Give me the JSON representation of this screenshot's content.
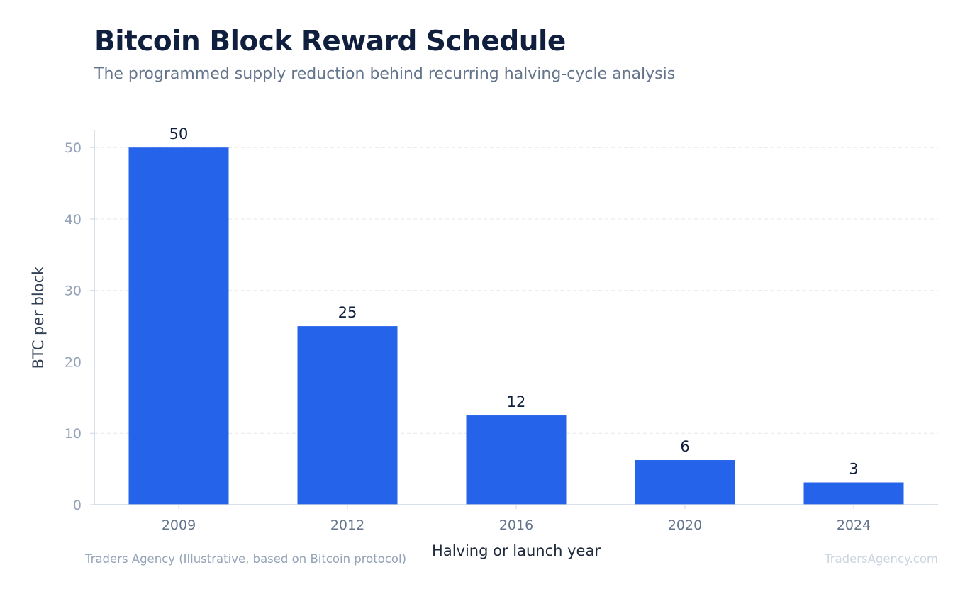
{
  "header": {
    "title": "Bitcoin Block Reward Schedule",
    "subtitle": "The programmed supply reduction behind recurring halving-cycle analysis"
  },
  "footer": {
    "source": "Traders Agency (Illustrative, based on Bitcoin protocol)",
    "brand": "TradersAgency.com"
  },
  "chart_data": {
    "type": "bar",
    "title": "Bitcoin Block Reward Schedule",
    "subtitle": "The programmed supply reduction behind recurring halving-cycle analysis",
    "xlabel": "Halving or launch year",
    "ylabel": "BTC per block",
    "categories": [
      "2009",
      "2012",
      "2016",
      "2020",
      "2024"
    ],
    "values": [
      50,
      25,
      12.5,
      6.25,
      3.125
    ],
    "data_labels": [
      "50",
      "25",
      "12",
      "6",
      "3"
    ],
    "yticks": [
      0,
      10,
      20,
      30,
      40,
      50
    ],
    "ylim": [
      0,
      52.5
    ],
    "grid": true,
    "legend": "none",
    "colors": {
      "bar": "#2563eb",
      "label": "#0f1f3d",
      "tick": "#94a3b8",
      "xtick": "#64748b",
      "axis": "#cbd5e1",
      "grid": "#e5e7eb"
    }
  }
}
